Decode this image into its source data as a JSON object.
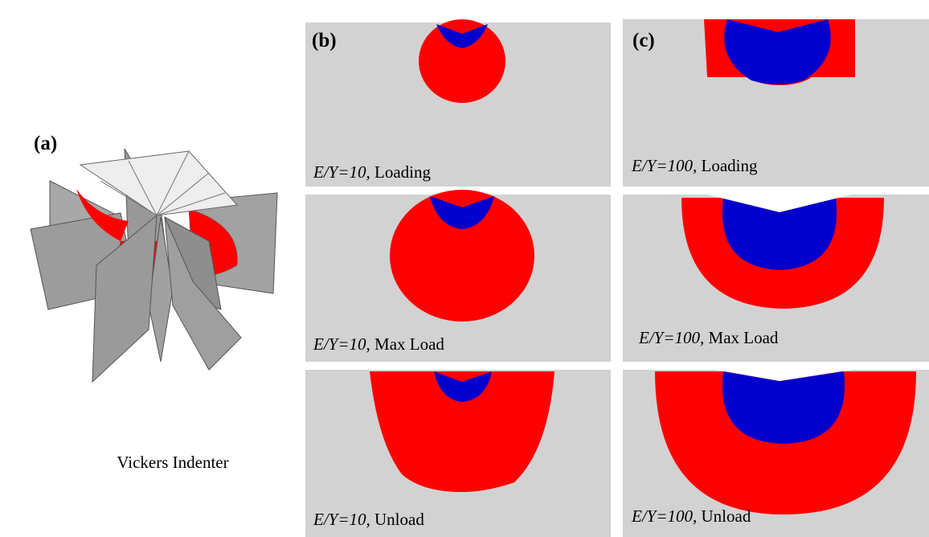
{
  "panels": {
    "a": {
      "label": "(a)",
      "caption": "Vickers Indenter"
    },
    "b": {
      "label": "(b)",
      "cells": [
        {
          "ratio": "E/Y=10",
          "stage": ", Loading"
        },
        {
          "ratio": "E/Y=10",
          "stage": ", Max Load"
        },
        {
          "ratio": "E/Y=10",
          "stage": ", Unload"
        }
      ]
    },
    "c": {
      "label": "(c)",
      "cells": [
        {
          "ratio": "E/Y=100",
          "stage": ", Loading"
        },
        {
          "ratio": "E/Y=100",
          "stage": ", Max Load"
        },
        {
          "ratio": "E/Y=100",
          "stage": ", Unload"
        }
      ]
    }
  }
}
